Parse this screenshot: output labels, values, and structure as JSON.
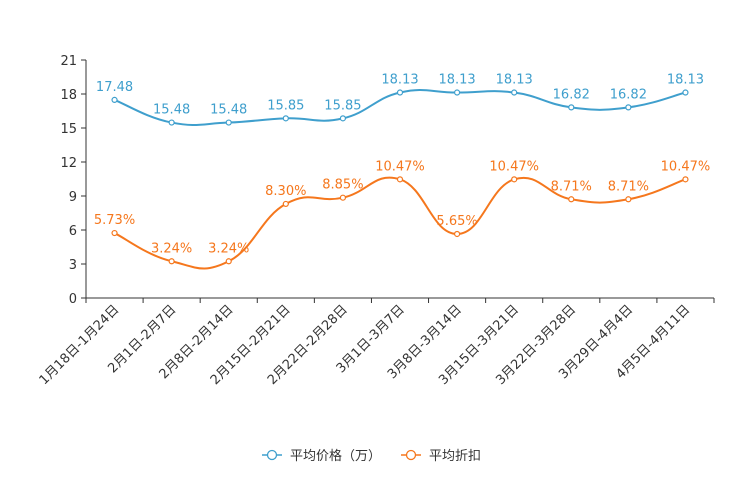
{
  "chart_data": {
    "type": "line",
    "title": "",
    "xlabel": "",
    "ylabel": "",
    "ylim": [
      0,
      21
    ],
    "yticks": [
      "0",
      "3",
      "6",
      "9",
      "12",
      "15",
      "18",
      "21"
    ],
    "categories": [
      "1月18日-1月24日",
      "2月1日-2月7日",
      "2月8日-2月14日",
      "2月15日-2月21日",
      "2月22日-2月28日",
      "3月1日-3月7日",
      "3月8日-3月14日",
      "3月15日-3月21日",
      "3月22日-3月28日",
      "3月29日-4月4日",
      "4月5日-4月11日"
    ],
    "legend_position": "bottom",
    "series": [
      {
        "name": "平均价格（万）",
        "color": "#3f9fcd",
        "values": [
          17.48,
          15.48,
          15.48,
          15.85,
          15.85,
          18.13,
          18.13,
          18.13,
          16.82,
          16.82,
          18.13
        ],
        "labels": [
          "17.48",
          "15.48",
          "15.48",
          "15.85",
          "15.85",
          "18.13",
          "18.13",
          "18.13",
          "16.82",
          "16.82",
          "18.13"
        ]
      },
      {
        "name": "平均折扣",
        "color": "#f5771d",
        "values": [
          5.73,
          3.24,
          3.24,
          8.3,
          8.85,
          10.47,
          5.65,
          10.47,
          8.71,
          8.71,
          10.47
        ],
        "labels": [
          "5.73%",
          "3.24%",
          "3.24%",
          "8.30%",
          "8.85%",
          "10.47%",
          "5.65%",
          "10.47%",
          "8.71%",
          "8.71%",
          "10.47%"
        ]
      }
    ]
  }
}
